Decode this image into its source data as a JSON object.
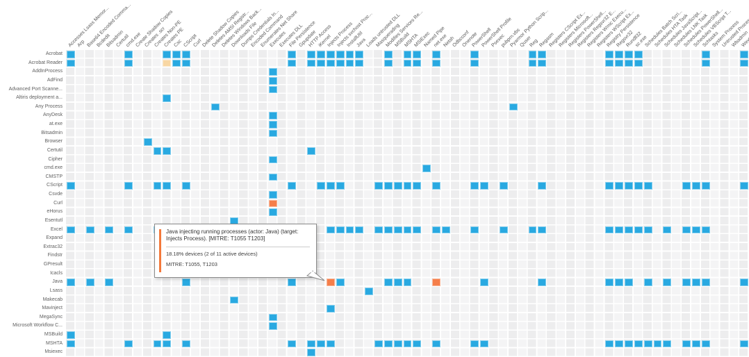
{
  "chart_data": {
    "type": "heatmap",
    "description": "Process vs. behavior detection matrix; blue = observed activity, orange = suspicious/alerted activity, light = low-confidence activity",
    "legend_position": "none",
    "grid": true,
    "cell_states": {
      "blue": "#29a9e1",
      "orange": "#f57e4a",
      "peach": "#f8d7a4"
    },
    "columns": [
      "Accesses Lsass Memor...",
      "Arp",
      "Base64 Encoded Comma...",
      "Bcdedit",
      "Bitsadmin",
      "Certutil",
      "cmd.exe",
      "Create Shadow Copies",
      "Creates .scr",
      "Creates Non-PE",
      "Creates PE",
      "Csc",
      "CScript",
      "Curl",
      "Delete Shadow Copies",
      "Deletes AMSI Registr...",
      "Deletes Windows Back...",
      "Downloads File",
      "Dumps Credentials In...",
      "Encoded Command",
      "Enumerates Net Share",
      "Executes",
      "Executes DLL",
      "File Persistence",
      "Gpupdate",
      "HTTP Access",
      "iKernel",
      "Injects Process",
      "Injects svchost Proc...",
      "InstallUtil",
      "Java",
      "Loads untrusted DLL",
      "Masquerading",
      "Modifies Services Re...",
      "MSBuild",
      "MSHTA",
      "MSIExec",
      "Named Pipe",
      "net.exe",
      "Netsh",
      "Odbcconf",
      "Onenote",
      "PowerShell",
      "PowerShell Profile",
      "Psexec",
      "pubprn.vbs",
      "Pyarmor Python Scrip...",
      "Quser",
      "Reg",
      "Regasm",
      "Registers CScript Ex...",
      "Registers Microsoft...",
      "Registers PowerShell...",
      "Registers Regsvr32 E...",
      "Registers Wmic Execu...",
      "Registers WScript Ex...",
      "Registry Persistence",
      "Regsvr32",
      "Rundll32",
      "sc.exe",
      "Schedules Batch Scri...",
      "Schedules HTA Task",
      "Schedules JavaScript...",
      "Schedules LNK Task",
      "Schedules PowerShell...",
      "Schedules VBScript T...",
      "Schtasks",
      "System Process",
      "Untrusted Process",
      "Wbadmin",
      "Wevtutil"
    ],
    "rows": [
      {
        "label": "Acrobat",
        "blue": [
          0,
          6,
          10,
          11,
          12,
          23,
          25,
          26,
          27,
          28,
          29,
          30,
          33,
          35,
          36,
          38,
          42,
          48,
          49,
          56,
          57,
          58,
          59,
          66,
          70
        ],
        "orange": [],
        "peach": []
      },
      {
        "label": "Acrobat Reader",
        "blue": [
          0,
          6,
          11,
          12,
          23,
          25,
          26,
          27,
          28,
          29,
          30,
          33,
          35,
          36,
          38,
          42,
          48,
          49,
          56,
          57,
          58,
          59,
          66,
          70
        ],
        "orange": [],
        "peach": [
          10
        ]
      },
      {
        "label": "AddInProcess",
        "blue": [
          21
        ],
        "orange": [],
        "peach": []
      },
      {
        "label": "AdFind",
        "blue": [
          21
        ],
        "orange": [],
        "peach": []
      },
      {
        "label": "Advanced Port Scanne...",
        "blue": [
          21
        ],
        "orange": [],
        "peach": []
      },
      {
        "label": "Altiris deployment a...",
        "blue": [
          10
        ],
        "orange": [],
        "peach": []
      },
      {
        "label": "Any Process",
        "blue": [
          15,
          46
        ],
        "orange": [],
        "peach": []
      },
      {
        "label": "AnyDesk",
        "blue": [
          21
        ],
        "orange": [],
        "peach": []
      },
      {
        "label": "at.exe",
        "blue": [
          21
        ],
        "orange": [],
        "peach": []
      },
      {
        "label": "Bitsadmin",
        "blue": [
          21
        ],
        "orange": [],
        "peach": []
      },
      {
        "label": "Browser",
        "blue": [
          8
        ],
        "orange": [],
        "peach": []
      },
      {
        "label": "Certutil",
        "blue": [
          9,
          10,
          25
        ],
        "orange": [],
        "peach": []
      },
      {
        "label": "Cipher",
        "blue": [
          21
        ],
        "orange": [],
        "peach": []
      },
      {
        "label": "cmd.exe",
        "blue": [
          37
        ],
        "orange": [],
        "peach": []
      },
      {
        "label": "CMSTP",
        "blue": [
          21
        ],
        "orange": [],
        "peach": []
      },
      {
        "label": "CScript",
        "blue": [
          0,
          6,
          9,
          10,
          12,
          23,
          26,
          27,
          28,
          32,
          33,
          34,
          35,
          36,
          38,
          42,
          43,
          45,
          49,
          56,
          57,
          58,
          59,
          60,
          64,
          65,
          66,
          70
        ],
        "orange": [],
        "peach": []
      },
      {
        "label": "Csvde",
        "blue": [
          21
        ],
        "orange": [],
        "peach": []
      },
      {
        "label": "Curl",
        "blue": [],
        "orange": [
          21
        ],
        "peach": []
      },
      {
        "label": "eHorus",
        "blue": [
          21
        ],
        "orange": [],
        "peach": []
      },
      {
        "label": "Esentutl",
        "blue": [
          17
        ],
        "orange": [],
        "peach": []
      },
      {
        "label": "Excel",
        "blue": [
          0,
          2,
          4,
          6,
          9,
          27,
          28,
          29,
          30,
          32,
          33,
          34,
          35,
          36,
          38,
          39,
          42,
          45,
          48,
          49,
          56,
          57,
          58,
          59,
          60,
          62,
          64,
          65,
          66
        ],
        "orange": [],
        "peach": []
      },
      {
        "label": "Expand",
        "blue": [],
        "orange": [],
        "peach": []
      },
      {
        "label": "Extrac32",
        "blue": [],
        "orange": [],
        "peach": []
      },
      {
        "label": "Findstr",
        "blue": [],
        "orange": [],
        "peach": []
      },
      {
        "label": "GPresult",
        "blue": [],
        "orange": [],
        "peach": []
      },
      {
        "label": "Icacls",
        "blue": [],
        "orange": [
          21
        ],
        "peach": []
      },
      {
        "label": "Java",
        "blue": [
          0,
          2,
          4,
          12,
          23,
          28,
          33,
          34,
          35,
          43,
          49,
          56,
          57,
          58,
          60,
          62,
          64,
          65,
          66,
          70
        ],
        "orange": [
          27,
          38
        ],
        "peach": []
      },
      {
        "label": "Lsass",
        "blue": [
          31
        ],
        "orange": [],
        "peach": []
      },
      {
        "label": "Makecab",
        "blue": [
          17
        ],
        "orange": [],
        "peach": []
      },
      {
        "label": "Mavinject",
        "blue": [
          27
        ],
        "orange": [],
        "peach": []
      },
      {
        "label": "MegaSync",
        "blue": [
          21
        ],
        "orange": [],
        "peach": []
      },
      {
        "label": "Microsoft Workflow C...",
        "blue": [
          21
        ],
        "orange": [],
        "peach": []
      },
      {
        "label": "MSBuild",
        "blue": [
          0,
          10
        ],
        "orange": [],
        "peach": []
      },
      {
        "label": "MSHTA",
        "blue": [
          0,
          6,
          9,
          10,
          12,
          23,
          25,
          26,
          27,
          32,
          33,
          34,
          35,
          36,
          38,
          42,
          43,
          56,
          57,
          58,
          59,
          60,
          61,
          62,
          64,
          65,
          66,
          70
        ],
        "orange": [],
        "peach": []
      },
      {
        "label": "Msiexec",
        "blue": [
          25
        ],
        "orange": [],
        "peach": []
      }
    ]
  },
  "tooltip": {
    "title": "Java injecting running processes (actor: Java) (target: Injects Process). [MITRE: T1055 T1203]",
    "stats": "18.18% devices (2 of 11 active devices)",
    "mitre": "MITRE: T1055, T1203",
    "accent_color": "#f4793b",
    "points_to": {
      "row": "Java",
      "column": "Injects Process"
    }
  }
}
